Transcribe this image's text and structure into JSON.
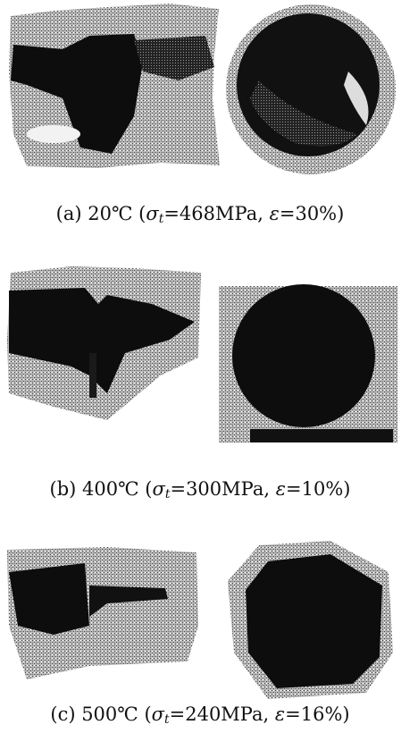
{
  "panels": [
    {
      "caption": {
        "prefix": "(a) 20℃ (",
        "sigma": "σ",
        "sub": "t",
        "middle": "=468MPa, ",
        "epsilon": "ε",
        "suffix": "=30%)"
      }
    },
    {
      "caption": {
        "prefix": "(b) 400℃ (",
        "sigma": "σ",
        "sub": "t",
        "middle": "=300MPa, ",
        "epsilon": "ε",
        "suffix": "=10%)"
      }
    },
    {
      "caption": {
        "prefix": "(c) 500℃ (",
        "sigma": "σ",
        "sub": "t",
        "middle": "=240MPa, ",
        "epsilon": "ε",
        "suffix": "=16%)"
      }
    }
  ]
}
